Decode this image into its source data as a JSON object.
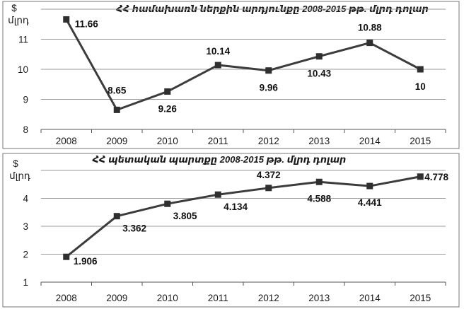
{
  "chart_data": [
    {
      "type": "line",
      "title": "ՀՀ համախառն ներքին արդյունքը 2008-2015 թթ. մլրդ դոլար",
      "unit_top": "$",
      "unit_bottom": "մլրդ",
      "x": [
        "2008",
        "2009",
        "2010",
        "2011",
        "2012",
        "2013",
        "2014",
        "2015"
      ],
      "values": [
        11.66,
        8.65,
        9.26,
        10.14,
        9.96,
        10.43,
        10.88,
        10
      ],
      "labels": [
        "11.66",
        "8.65",
        "9.26",
        "10.14",
        "9.96",
        "10.43",
        "10.88",
        "10"
      ],
      "yticks": [
        "8",
        "9",
        "10",
        "11"
      ],
      "ylim": [
        8,
        12
      ],
      "grid": true,
      "line_color": "#3c3c3c"
    },
    {
      "type": "line",
      "title": "ՀՀ պետական պարտքը 2008-2015 թթ. մլրդ դոլար",
      "unit_top": "$",
      "unit_bottom": "մլրդ",
      "x": [
        "2008",
        "2009",
        "2010",
        "2011",
        "2012",
        "2013",
        "2014",
        "2015"
      ],
      "values": [
        1.906,
        3.362,
        3.805,
        4.134,
        4.372,
        4.588,
        4.441,
        4.778
      ],
      "labels": [
        "1.906",
        "3.362",
        "3.805",
        "4.134",
        "4.372",
        "4.588",
        "4.441",
        "4.778"
      ],
      "yticks": [
        "1",
        "2",
        "3",
        "4"
      ],
      "ylim": [
        1,
        5
      ],
      "grid": true,
      "line_color": "#3c3c3c"
    }
  ]
}
